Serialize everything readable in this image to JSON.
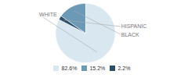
{
  "chart_data": {
    "type": "pie",
    "categories": [
      "WHITE",
      "HISPANIC",
      "BLACK"
    ],
    "values": [
      82.6,
      2.2,
      15.2
    ],
    "value_labels": [
      "82.6%",
      "2.2%",
      "15.2%"
    ],
    "colors": [
      "#d9e8f0",
      "#2d4e6b",
      "#6a9ab5"
    ],
    "legend": "bottom",
    "legend_order": [
      0,
      2,
      1
    ]
  }
}
